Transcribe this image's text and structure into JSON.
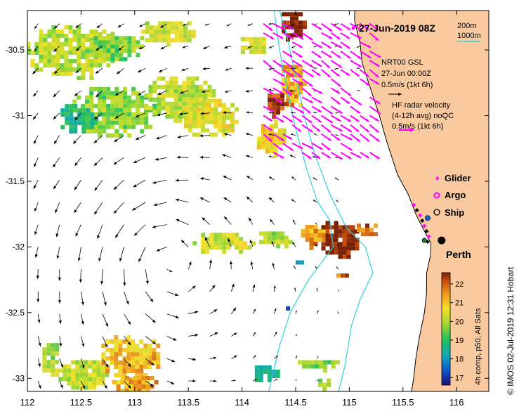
{
  "chart_data": {
    "type": "map",
    "title": "27-Jun-2019 08Z",
    "xlim": [
      112,
      116.3
    ],
    "ylim": [
      -33.1,
      -30.2
    ],
    "x_ticks": [
      {
        "value": 112,
        "label": "112"
      },
      {
        "value": 112.5,
        "label": "112.5"
      },
      {
        "value": 113,
        "label": "113"
      },
      {
        "value": 113.5,
        "label": "113.5"
      },
      {
        "value": 114,
        "label": "114"
      },
      {
        "value": 114.5,
        "label": "114.5"
      },
      {
        "value": 115,
        "label": "115"
      },
      {
        "value": 115.5,
        "label": "115.5"
      },
      {
        "value": 116,
        "label": "116"
      }
    ],
    "y_ticks": [
      {
        "value": -30.5,
        "label": "-30.5"
      },
      {
        "value": -31,
        "label": "-31"
      },
      {
        "value": -31.5,
        "label": "-31.5"
      },
      {
        "value": -32,
        "label": "-32"
      },
      {
        "value": -32.5,
        "label": "-32.5"
      },
      {
        "value": -33,
        "label": "-33"
      }
    ],
    "depth_legend": [
      "200m",
      "1000m"
    ],
    "vector_legend": {
      "nrt": [
        "NRT00 GSL",
        "27-Jun 00:00Z",
        "0.5m/s (1kt 6h)"
      ],
      "hf": [
        "HF radar velocity",
        "(4-12h avg) noQC",
        "0.5m/s (1kt 6h)"
      ]
    },
    "platforms": [
      {
        "name": "Glider",
        "color": "#ff00ff"
      },
      {
        "name": "Argo",
        "color": "#ff00ff"
      },
      {
        "name": "Ship",
        "color": "#000000"
      }
    ],
    "city": {
      "name": "Perth",
      "lon": 115.86,
      "lat": -31.95
    },
    "colorbar": {
      "ticks": [
        17,
        18,
        19,
        20,
        21,
        22
      ],
      "label": "4h comp, p50, All Sats",
      "range": [
        16.6,
        22.6
      ]
    },
    "sst_patches": [
      {
        "lon": 112.4,
        "lat": -30.5,
        "rx": 0.45,
        "ry": 0.22,
        "value": 20.4
      },
      {
        "lon": 112.8,
        "lat": -30.45,
        "rx": 0.3,
        "ry": 0.12,
        "value": 20.0
      },
      {
        "lon": 112.8,
        "lat": -30.95,
        "rx": 0.42,
        "ry": 0.2,
        "value": 20.1
      },
      {
        "lon": 112.45,
        "lat": -31.0,
        "rx": 0.18,
        "ry": 0.12,
        "value": 19.2
      },
      {
        "lon": 113.4,
        "lat": -30.85,
        "rx": 0.35,
        "ry": 0.18,
        "value": 20.5
      },
      {
        "lon": 113.7,
        "lat": -31.0,
        "rx": 0.28,
        "ry": 0.16,
        "value": 20.8
      },
      {
        "lon": 113.3,
        "lat": -30.35,
        "rx": 0.28,
        "ry": 0.1,
        "value": 20.6
      },
      {
        "lon": 114.1,
        "lat": -30.45,
        "rx": 0.15,
        "ry": 0.08,
        "value": 20.7
      },
      {
        "lon": 114.45,
        "lat": -30.3,
        "rx": 0.12,
        "ry": 0.12,
        "value": 22.6
      },
      {
        "lon": 114.45,
        "lat": -30.75,
        "rx": 0.12,
        "ry": 0.2,
        "value": 21.5
      },
      {
        "lon": 114.3,
        "lat": -30.9,
        "rx": 0.1,
        "ry": 0.1,
        "value": 22.4
      },
      {
        "lon": 114.25,
        "lat": -31.15,
        "rx": 0.15,
        "ry": 0.15,
        "value": 21.0
      },
      {
        "lon": 113.8,
        "lat": -31.95,
        "rx": 0.3,
        "ry": 0.09,
        "value": 20.6
      },
      {
        "lon": 114.3,
        "lat": -31.92,
        "rx": 0.18,
        "ry": 0.07,
        "value": 20.3
      },
      {
        "lon": 114.65,
        "lat": -31.9,
        "rx": 0.14,
        "ry": 0.1,
        "value": 21.6
      },
      {
        "lon": 114.9,
        "lat": -31.92,
        "rx": 0.2,
        "ry": 0.15,
        "value": 22.6
      },
      {
        "lon": 115.15,
        "lat": -31.85,
        "rx": 0.12,
        "ry": 0.06,
        "value": 22.0
      },
      {
        "lon": 112.2,
        "lat": -32.85,
        "rx": 0.1,
        "ry": 0.15,
        "value": 20.3
      },
      {
        "lon": 112.5,
        "lat": -32.95,
        "rx": 0.25,
        "ry": 0.12,
        "value": 20.5
      },
      {
        "lon": 112.95,
        "lat": -32.82,
        "rx": 0.3,
        "ry": 0.18,
        "value": 21.3
      },
      {
        "lon": 113.0,
        "lat": -33.03,
        "rx": 0.25,
        "ry": 0.08,
        "value": 21.5
      },
      {
        "lon": 114.2,
        "lat": -32.95,
        "rx": 0.12,
        "ry": 0.08,
        "value": 18.9
      },
      {
        "lon": 114.7,
        "lat": -32.88,
        "rx": 0.22,
        "ry": 0.05,
        "value": 20.1
      },
      {
        "lon": 114.75,
        "lat": -33.02,
        "rx": 0.08,
        "ry": 0.05,
        "value": 20.2
      },
      {
        "lon": 114.4,
        "lat": -32.45,
        "rx": 0.03,
        "ry": 0.03,
        "value": 17.6
      },
      {
        "lon": 114.5,
        "lat": -32.1,
        "rx": 0.04,
        "ry": 0.03,
        "value": 18.3
      },
      {
        "lon": 114.9,
        "lat": -32.2,
        "rx": 0.06,
        "ry": 0.03,
        "value": 21.9
      },
      {
        "lon": 114.75,
        "lat": -33.1,
        "rx": 0.25,
        "ry": 0.02,
        "value": 22.4
      }
    ],
    "coast": [
      [
        115.05,
        -30.2
      ],
      [
        115.05,
        -30.28
      ],
      [
        115.1,
        -30.45
      ],
      [
        115.12,
        -30.6
      ],
      [
        115.2,
        -30.8
      ],
      [
        115.28,
        -31.0
      ],
      [
        115.35,
        -31.2
      ],
      [
        115.45,
        -31.45
      ],
      [
        115.55,
        -31.6
      ],
      [
        115.62,
        -31.75
      ],
      [
        115.7,
        -31.88
      ],
      [
        115.76,
        -31.97
      ],
      [
        115.76,
        -32.05
      ],
      [
        115.72,
        -32.2
      ],
      [
        115.72,
        -32.35
      ],
      [
        115.7,
        -32.5
      ],
      [
        115.65,
        -32.7
      ],
      [
        115.62,
        -32.85
      ],
      [
        115.6,
        -33.0
      ],
      [
        115.58,
        -33.1
      ]
    ],
    "isobath_200": [
      [
        114.35,
        -30.2
      ],
      [
        114.42,
        -30.4
      ],
      [
        114.5,
        -30.7
      ],
      [
        114.58,
        -31.0
      ],
      [
        114.68,
        -31.3
      ],
      [
        114.82,
        -31.6
      ],
      [
        114.97,
        -31.85
      ],
      [
        115.15,
        -32.0
      ],
      [
        115.22,
        -32.2
      ],
      [
        115.1,
        -32.4
      ],
      [
        115.02,
        -32.6
      ],
      [
        114.96,
        -32.9
      ],
      [
        114.9,
        -33.1
      ]
    ],
    "isobath_1000": [
      [
        114.3,
        -30.2
      ],
      [
        114.35,
        -30.5
      ],
      [
        114.42,
        -30.8
      ],
      [
        114.5,
        -31.1
      ],
      [
        114.6,
        -31.4
      ],
      [
        114.7,
        -31.65
      ],
      [
        114.82,
        -31.8
      ],
      [
        114.85,
        -32.0
      ],
      [
        114.62,
        -32.25
      ],
      [
        114.45,
        -32.5
      ],
      [
        114.35,
        -32.75
      ],
      [
        114.25,
        -33.1
      ]
    ],
    "current_field": {
      "eddy_center_lon": 113.3,
      "eddy_center_lat": -32.1,
      "background_u": -0.03,
      "background_v": -0.06
    },
    "hf_radar_region": {
      "lon_min": 114.2,
      "lon_max": 115.2,
      "lat_min": -31.35,
      "lat_max": -30.3
    },
    "glider_track": [
      [
        115.6,
        -31.68
      ],
      [
        115.63,
        -31.72
      ],
      [
        115.66,
        -31.76
      ],
      [
        115.68,
        -31.8
      ],
      [
        115.7,
        -31.84
      ],
      [
        115.72,
        -31.88
      ],
      [
        115.74,
        -31.92
      ],
      [
        115.73,
        -31.96
      ]
    ],
    "argo_positions": [
      [
        115.73,
        -31.78
      ]
    ],
    "ship_positions": [
      [
        115.86,
        -31.95
      ],
      [
        115.7,
        -31.95
      ]
    ]
  },
  "footer": {
    "side_label": "© IMOS 02-Jul-2019 12:31 Hobart"
  },
  "colors": {
    "land": "#f9c9a0",
    "isobath": "#2fd0e0",
    "hf_vector": "#ff00ff",
    "model_vector": "#000000"
  }
}
